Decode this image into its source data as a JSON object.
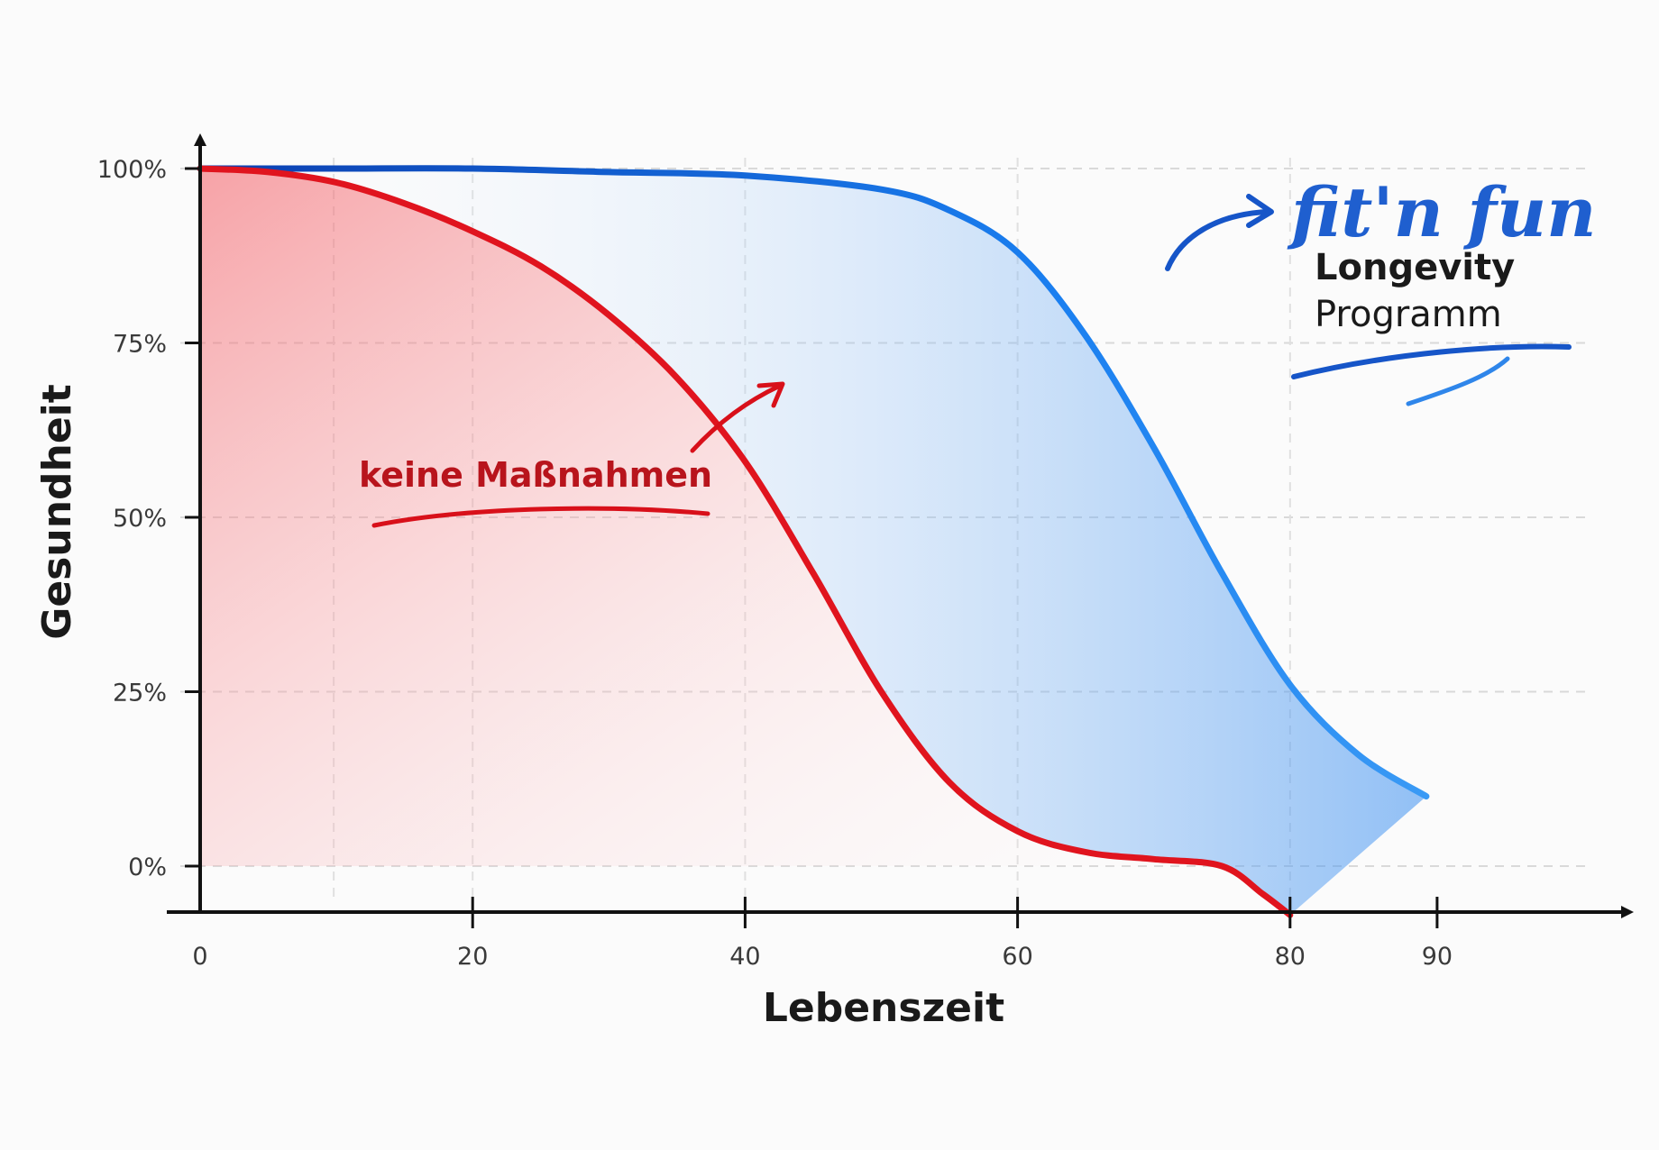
{
  "chart_data": {
    "type": "line",
    "xlabel": "Lebenszeit",
    "ylabel": "Gesundheit",
    "x_ticks": [
      "0",
      "20",
      "40",
      "60",
      "80",
      "90"
    ],
    "y_ticks": [
      "0%",
      "25%",
      "50%",
      "75%",
      "100%"
    ],
    "xlim": [
      0,
      90
    ],
    "ylim": [
      0,
      100
    ],
    "grid": true,
    "series": [
      {
        "name": "keine Maßnahmen",
        "color": "#e0141e",
        "x": [
          0,
          5,
          10,
          15,
          20,
          25,
          30,
          35,
          40,
          45,
          50,
          55,
          60,
          65,
          70,
          75,
          78,
          80
        ],
        "y": [
          100,
          99.5,
          98,
          95,
          91,
          86,
          79,
          70,
          58,
          42,
          25,
          12,
          5,
          2,
          1,
          0,
          -4,
          -7
        ]
      },
      {
        "name": "fit'n fun Longevity Programm",
        "color": "#1467e0",
        "x": [
          0,
          10,
          20,
          30,
          40,
          50,
          55,
          60,
          65,
          70,
          75,
          80,
          85,
          90
        ],
        "y": [
          100,
          100,
          100,
          99.5,
          99,
          97,
          94,
          88,
          76,
          60,
          42,
          26,
          16,
          10
        ]
      }
    ],
    "annotations": {
      "red_label": "keine Maßnahmen",
      "brand_name": "fit'n fun",
      "brand_line1": "Longevity",
      "brand_line2": "Programm"
    }
  }
}
